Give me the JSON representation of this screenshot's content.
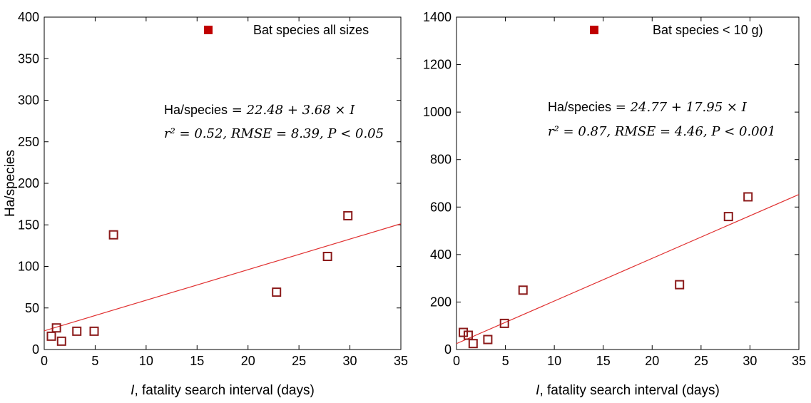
{
  "chart_data": [
    {
      "type": "scatter",
      "xlabel_var": "I",
      "xlabel_rest": ", fatality search interval (days)",
      "ylabel": "Ha/species",
      "xlim": [
        0,
        35
      ],
      "ylim": [
        0,
        400
      ],
      "xticks": [
        0,
        5,
        10,
        15,
        20,
        25,
        30,
        35
      ],
      "yticks": [
        0,
        50,
        100,
        150,
        200,
        250,
        300,
        350,
        400
      ],
      "grid": false,
      "legend": {
        "label": "Bat species all sizes",
        "position": "top-right",
        "marker": "filled-square",
        "color": "#c00000"
      },
      "series": [
        {
          "marker": "open-square",
          "color": "#8b1a1a",
          "points": [
            {
              "x": 0.7,
              "y": 16
            },
            {
              "x": 1.2,
              "y": 26
            },
            {
              "x": 1.7,
              "y": 10
            },
            {
              "x": 3.2,
              "y": 22
            },
            {
              "x": 4.9,
              "y": 22
            },
            {
              "x": 6.8,
              "y": 138
            },
            {
              "x": 22.8,
              "y": 69
            },
            {
              "x": 27.8,
              "y": 112
            },
            {
              "x": 29.8,
              "y": 161
            }
          ]
        }
      ],
      "fit": {
        "intercept": 22.48,
        "slope": 3.68,
        "color": "#e03030"
      },
      "annotation": {
        "line1_lhs": "Ha/species",
        "line1_rhs": " = 22.48 + 3.68 × I",
        "line2": "r² = 0.52, RMSE = 8.39, P < 0.05"
      }
    },
    {
      "type": "scatter",
      "xlabel_var": "I",
      "xlabel_rest": ", fatality search interval (days)",
      "ylabel": "",
      "xlim": [
        0,
        35
      ],
      "ylim": [
        0,
        1400
      ],
      "xticks": [
        0,
        5,
        10,
        15,
        20,
        25,
        30,
        35
      ],
      "yticks": [
        0,
        200,
        400,
        600,
        800,
        1000,
        1200,
        1400
      ],
      "grid": false,
      "legend": {
        "label": "Bat species < 10 g)",
        "position": "top-right",
        "marker": "filled-square",
        "color": "#c00000"
      },
      "series": [
        {
          "marker": "open-square",
          "color": "#8b1a1a",
          "points": [
            {
              "x": 0.7,
              "y": 72
            },
            {
              "x": 1.2,
              "y": 60
            },
            {
              "x": 1.7,
              "y": 25
            },
            {
              "x": 3.2,
              "y": 42
            },
            {
              "x": 4.9,
              "y": 110
            },
            {
              "x": 6.8,
              "y": 250
            },
            {
              "x": 22.8,
              "y": 273
            },
            {
              "x": 27.8,
              "y": 560
            },
            {
              "x": 29.8,
              "y": 643
            }
          ]
        }
      ],
      "fit": {
        "intercept": 24.77,
        "slope": 17.95,
        "color": "#e03030"
      },
      "annotation": {
        "line1_lhs": "Ha/species",
        "line1_rhs": " = 24.77 + 17.95 × I",
        "line2": "r² = 0.87, RMSE = 4.46, P < 0.001"
      }
    }
  ]
}
